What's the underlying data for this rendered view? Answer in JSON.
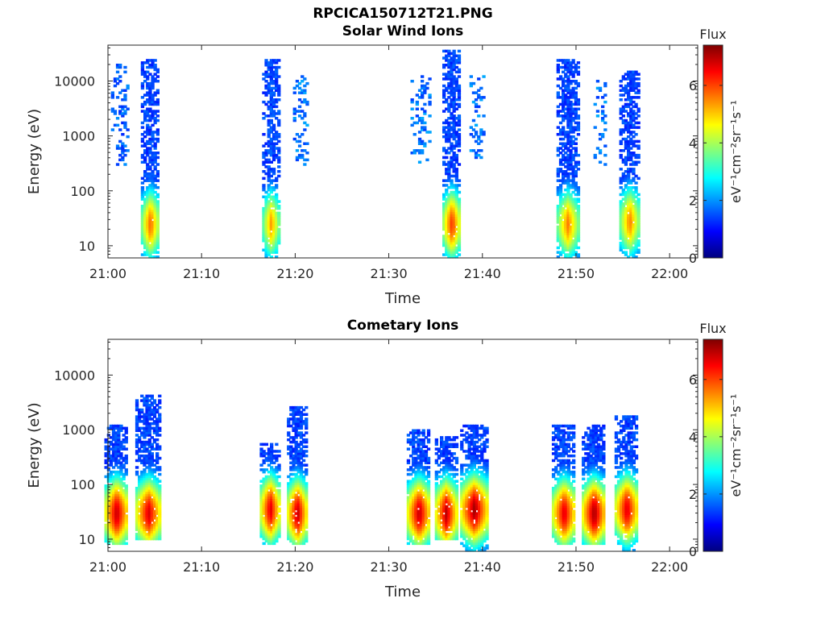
{
  "figure": {
    "title": "RPCICA150712T21.PNG"
  },
  "colormap": {
    "name": "jet",
    "stops": [
      "#00007f",
      "#0000ff",
      "#007fff",
      "#00ffff",
      "#7fff7f",
      "#ffff00",
      "#ff7f00",
      "#ff0000",
      "#7f0000"
    ]
  },
  "chart_data": [
    {
      "type": "heatmap",
      "title": "Solar Wind Ions",
      "xlabel": "Time",
      "ylabel": "Energy (eV)",
      "x_ticks": [
        "21:00",
        "21:10",
        "21:20",
        "21:30",
        "21:40",
        "21:50",
        "22:00"
      ],
      "x_range_minutes": [
        0,
        63
      ],
      "y_scale": "log",
      "y_ticks": [
        "10",
        "100",
        "1000",
        "10000"
      ],
      "y_range": [
        6,
        45000
      ],
      "colorbar": {
        "label_top": "Flux",
        "label": "eV⁻¹cm⁻²sr⁻¹s⁻¹",
        "ticks": [
          "0",
          "2",
          "4",
          "6"
        ],
        "range": [
          0,
          7.4
        ]
      },
      "bursts": [
        {
          "minute": 1.4,
          "emin": 300,
          "emax": 20000,
          "peak_energy": 2000,
          "max_flux": 2.0,
          "width_min": 1.8,
          "density": 0.35,
          "sparse": true
        },
        {
          "minute": 4.6,
          "emin": 6,
          "emax": 25000,
          "peak_energy": 25,
          "max_flux": 5.8,
          "width_min": 1.8,
          "density": 0.8,
          "sparse": false
        },
        {
          "minute": 17.5,
          "emin": 6,
          "emax": 24000,
          "peak_energy": 25,
          "max_flux": 5.4,
          "width_min": 1.7,
          "density": 0.8,
          "sparse": false
        },
        {
          "minute": 20.7,
          "emin": 300,
          "emax": 13000,
          "peak_energy": 2000,
          "max_flux": 2.2,
          "width_min": 1.5,
          "density": 0.35,
          "sparse": true
        },
        {
          "minute": 33.5,
          "emin": 300,
          "emax": 13000,
          "peak_energy": 1500,
          "max_flux": 2.2,
          "width_min": 2.0,
          "density": 0.3,
          "sparse": true
        },
        {
          "minute": 36.8,
          "emin": 6,
          "emax": 36000,
          "peak_energy": 25,
          "max_flux": 6.2,
          "width_min": 1.8,
          "density": 0.8,
          "sparse": false
        },
        {
          "minute": 39.6,
          "emin": 400,
          "emax": 13000,
          "peak_energy": 2500,
          "max_flux": 2.2,
          "width_min": 1.6,
          "density": 0.35,
          "sparse": true
        },
        {
          "minute": 49.2,
          "emin": 6,
          "emax": 25000,
          "peak_energy": 25,
          "max_flux": 5.6,
          "width_min": 2.2,
          "density": 0.8,
          "sparse": false
        },
        {
          "minute": 52.7,
          "emin": 300,
          "emax": 12000,
          "peak_energy": 2000,
          "max_flux": 2.2,
          "width_min": 1.3,
          "density": 0.35,
          "sparse": true
        },
        {
          "minute": 55.8,
          "emin": 6,
          "emax": 15000,
          "peak_energy": 28,
          "max_flux": 5.6,
          "width_min": 2.0,
          "density": 0.8,
          "sparse": false
        }
      ]
    },
    {
      "type": "heatmap",
      "title": "Cometary Ions",
      "xlabel": "Time",
      "ylabel": "Energy (eV)",
      "x_ticks": [
        "21:00",
        "21:10",
        "21:20",
        "21:30",
        "21:40",
        "21:50",
        "22:00"
      ],
      "x_range_minutes": [
        0,
        63
      ],
      "y_scale": "log",
      "y_ticks": [
        "10",
        "100",
        "1000",
        "10000"
      ],
      "y_range": [
        6,
        45000
      ],
      "colorbar": {
        "label_top": "Flux",
        "label": "eV⁻¹cm⁻²sr⁻¹s⁻¹",
        "ticks": [
          "0",
          "2",
          "4",
          "6"
        ],
        "range": [
          0,
          7.4
        ]
      },
      "bursts": [
        {
          "minute": 1.0,
          "emin": 8,
          "emax": 1200,
          "peak_energy": 30,
          "max_flux": 7.0,
          "width_min": 2.4,
          "density": 0.85,
          "sparse": false
        },
        {
          "minute": 4.4,
          "emin": 10,
          "emax": 4500,
          "peak_energy": 30,
          "max_flux": 6.8,
          "width_min": 2.6,
          "density": 0.85,
          "sparse": false
        },
        {
          "minute": 17.4,
          "emin": 8,
          "emax": 600,
          "peak_energy": 35,
          "max_flux": 6.8,
          "width_min": 2.0,
          "density": 0.85,
          "sparse": false
        },
        {
          "minute": 20.3,
          "emin": 8,
          "emax": 2800,
          "peak_energy": 30,
          "max_flux": 7.0,
          "width_min": 2.0,
          "density": 0.85,
          "sparse": false
        },
        {
          "minute": 33.3,
          "emin": 8,
          "emax": 1000,
          "peak_energy": 30,
          "max_flux": 7.0,
          "width_min": 2.4,
          "density": 0.85,
          "sparse": false
        },
        {
          "minute": 36.2,
          "emin": 10,
          "emax": 800,
          "peak_energy": 30,
          "max_flux": 7.0,
          "width_min": 2.2,
          "density": 0.85,
          "sparse": false
        },
        {
          "minute": 39.2,
          "emin": 6,
          "emax": 1300,
          "peak_energy": 35,
          "max_flux": 7.2,
          "width_min": 2.8,
          "density": 0.85,
          "sparse": false
        },
        {
          "minute": 48.8,
          "emin": 8,
          "emax": 1200,
          "peak_energy": 30,
          "max_flux": 6.8,
          "width_min": 2.4,
          "density": 0.85,
          "sparse": false
        },
        {
          "minute": 52.0,
          "emin": 8,
          "emax": 1300,
          "peak_energy": 30,
          "max_flux": 7.2,
          "width_min": 2.4,
          "density": 0.85,
          "sparse": false
        },
        {
          "minute": 55.5,
          "emin": 6,
          "emax": 1800,
          "peak_energy": 35,
          "max_flux": 6.8,
          "width_min": 2.4,
          "density": 0.85,
          "sparse": false
        }
      ]
    }
  ]
}
